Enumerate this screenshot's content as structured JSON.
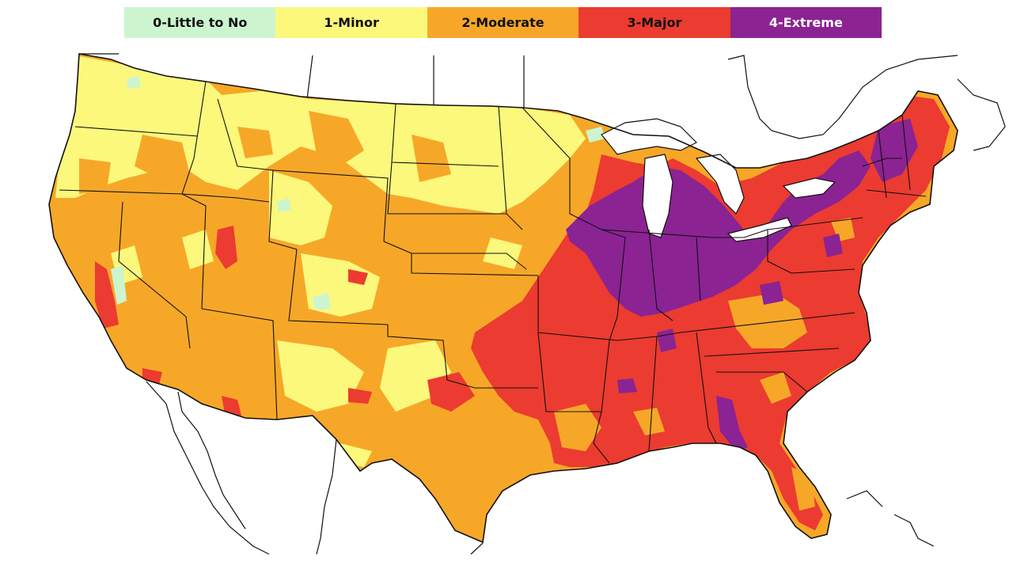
{
  "legend": {
    "items": [
      {
        "label": "0-Little to No",
        "color": "#ccf5cf"
      },
      {
        "label": "1-Minor",
        "color": "#fbf87c"
      },
      {
        "label": "2-Moderate",
        "color": "#f7a728"
      },
      {
        "label": "3-Major",
        "color": "#ec3b30"
      },
      {
        "label": "4-Extreme",
        "color": "#8b2393"
      }
    ]
  },
  "map": {
    "region": "contiguous-united-states",
    "colors": {
      "background": "#ffffff",
      "border": "#111111",
      "little": "#ccf5cf",
      "minor": "#fbf87c",
      "moderate": "#f7a728",
      "major": "#ec3b30",
      "extreme": "#8b2393"
    }
  }
}
